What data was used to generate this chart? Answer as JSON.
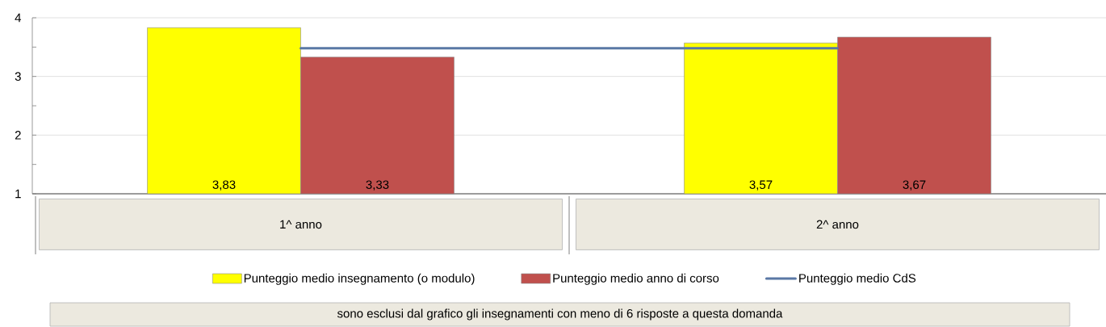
{
  "chart_data": {
    "type": "bar",
    "categories": [
      "1^ anno",
      "2^ anno"
    ],
    "series": [
      {
        "name": "Punteggio medio insegnamento (o modulo)",
        "color": "#ffff00",
        "values": [
          3.83,
          3.57
        ],
        "value_labels": [
          "3,83",
          "3,57"
        ]
      },
      {
        "name": "Punteggio medio anno di corso",
        "color": "#c0504d",
        "values": [
          3.33,
          3.67
        ],
        "value_labels": [
          "3,33",
          "3,67"
        ]
      },
      {
        "name": "Punteggio medio CdS",
        "type": "line",
        "color": "#5a78a5",
        "values": [
          3.48,
          3.48
        ]
      }
    ],
    "ylim": [
      1,
      4
    ],
    "yticks": [
      1,
      {
        "value": 1.5,
        "label": null
      },
      2,
      {
        "value": 2.5,
        "label": null
      },
      3,
      {
        "value": 3.5,
        "label": null
      },
      4
    ],
    "grid": "y",
    "legend": "bottom",
    "marker": "none",
    "line_style": "solid",
    "annotations": [
      "sono esclusi dal grafico gli insegnamenti con meno di 6 risposte a questa domanda"
    ]
  }
}
